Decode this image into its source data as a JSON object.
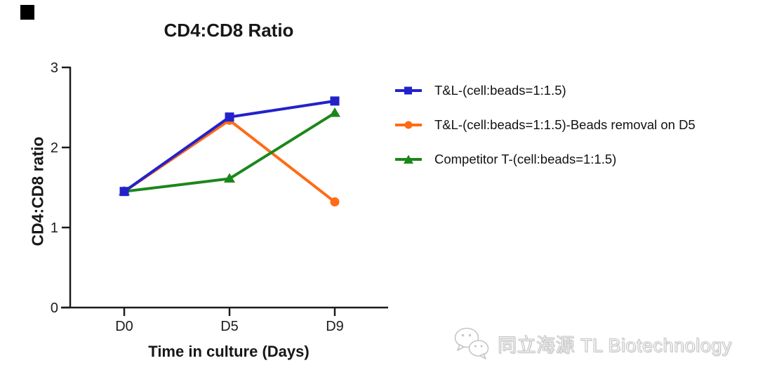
{
  "page": {
    "background": "#ffffff"
  },
  "corner_marker": {
    "color": "#000000"
  },
  "chart_data": {
    "type": "line",
    "title": "CD4:CD8 Ratio",
    "xlabel": "Time in culture (Days)",
    "ylabel": "CD4:CD8 ratio",
    "categories": [
      "D0",
      "D5",
      "D9"
    ],
    "ylim": [
      0,
      3
    ],
    "yticks": [
      0,
      1,
      2,
      3
    ],
    "grid": false,
    "legend_position": "right",
    "axis_color": "#1c1c1c",
    "tick_label_color": "#1c1c1c",
    "series": [
      {
        "name": "T&L-(cell:beads=1:1.5)",
        "color": "#2222cb",
        "marker": "square",
        "values": [
          1.45,
          2.38,
          2.58
        ]
      },
      {
        "name": "T&L-(cell:beads=1:1.5)-Beads removal on D5",
        "color": "#ff6b16",
        "marker": "circle",
        "values": [
          1.45,
          2.34,
          1.32
        ]
      },
      {
        "name": "Competitor T-(cell:beads=1:1.5)",
        "color": "#1a871a",
        "marker": "triangle",
        "values": [
          1.45,
          1.61,
          2.43
        ]
      }
    ]
  },
  "watermark": {
    "text": "同立海源 TL Biotechnology",
    "icon": "wechat-icon",
    "stroke_color": "#c6c6c6"
  }
}
